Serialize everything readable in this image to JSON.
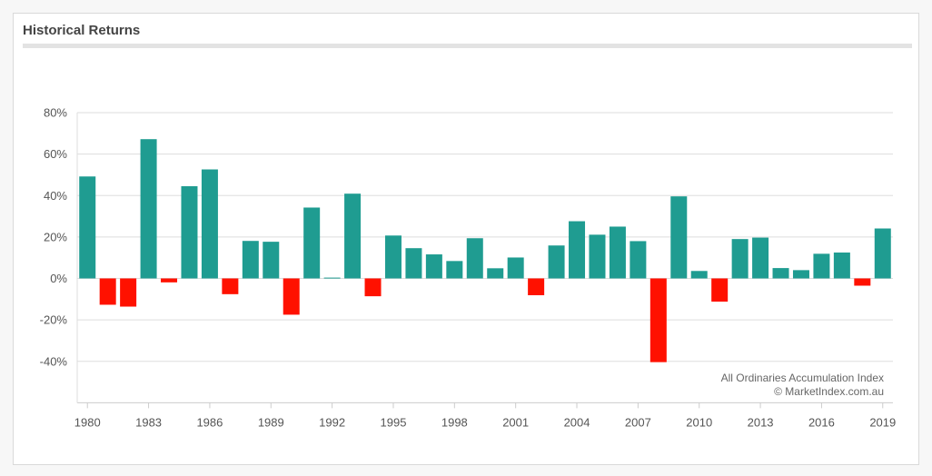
{
  "card": {
    "title": "Historical Returns"
  },
  "chart_data": {
    "type": "bar",
    "title": "Historical Returns",
    "xlabel": "",
    "ylabel": "",
    "ylim": [
      -60,
      80
    ],
    "yticks": [
      80,
      60,
      40,
      20,
      0,
      -20,
      -40
    ],
    "ytick_labels": [
      "80%",
      "60%",
      "40%",
      "20%",
      "0%",
      "-20%",
      "-40%"
    ],
    "xtick_labels": [
      "1980",
      "1983",
      "1986",
      "1989",
      "1992",
      "1995",
      "1998",
      "2001",
      "2004",
      "2007",
      "2010",
      "2013",
      "2016",
      "2019"
    ],
    "grid": true,
    "positive_color": "#1f9c91",
    "negative_color": "#ff1100",
    "categories": [
      "1980",
      "1981",
      "1982",
      "1983",
      "1984",
      "1985",
      "1986",
      "1987",
      "1988",
      "1989",
      "1990",
      "1991",
      "1992",
      "1993",
      "1994",
      "1995",
      "1996",
      "1997",
      "1998",
      "1999",
      "2000",
      "2001",
      "2002",
      "2003",
      "2004",
      "2005",
      "2006",
      "2007",
      "2008",
      "2009",
      "2010",
      "2011",
      "2012",
      "2013",
      "2014",
      "2015",
      "2016",
      "2017",
      "2018",
      "2019"
    ],
    "values": [
      49.2,
      -12.7,
      -13.6,
      67.2,
      -1.9,
      44.5,
      52.6,
      -7.6,
      18.1,
      17.7,
      -17.5,
      34.2,
      0.4,
      40.9,
      -8.6,
      20.7,
      14.6,
      11.6,
      8.4,
      19.4,
      4.9,
      10.1,
      -8.1,
      15.9,
      27.6,
      21.1,
      25.0,
      18.0,
      -40.4,
      39.6,
      3.6,
      -11.2,
      19.0,
      19.7,
      5.0,
      4.0,
      11.9,
      12.5,
      -3.5,
      24.1
    ],
    "annotations": [
      "All Ordinaries Accumulation Index",
      "© MarketIndex.com.au"
    ]
  }
}
